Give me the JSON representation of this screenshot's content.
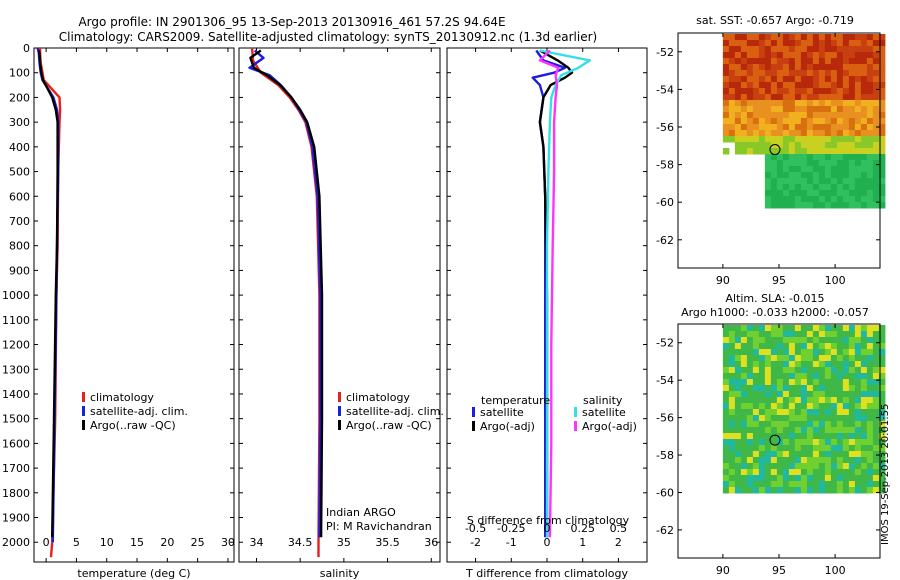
{
  "header": {
    "title_line1": "Argo profile: IN 2901306_95 13-Sep-2013 20130916_461 57.2S 94.64E",
    "title_line2": "Climatology: CARS2009. Satellite-adjusted climatology: synTS_20130912.nc (1.3d earlier)"
  },
  "colors": {
    "climatology": "#e8201c",
    "satellite": "#1a1ee0",
    "argo": "#000000",
    "satellite_salinity": "#33e0e8",
    "argo_salinity_diff": "#ff33ff"
  },
  "chart_data": [
    {
      "id": "temperature",
      "type": "line",
      "xlabel": "temperature (deg C)",
      "ylabel": "",
      "xlim": [
        -2,
        31
      ],
      "ylim": [
        2080,
        0
      ],
      "xticks": [
        0,
        5,
        10,
        15,
        20,
        25,
        30
      ],
      "yticks": [
        0,
        100,
        200,
        300,
        400,
        500,
        600,
        700,
        800,
        900,
        1000,
        1100,
        1200,
        1300,
        1400,
        1500,
        1600,
        1700,
        1800,
        1900,
        2000
      ],
      "legend": {
        "placement": "center",
        "entries": [
          "climatology",
          "satellite-adj. clim.",
          "Argo(..raw -QC)"
        ]
      },
      "series": [
        {
          "name": "climatology",
          "color": "#e8201c",
          "depth": [
            0,
            20,
            60,
            100,
            130,
            200,
            250,
            300,
            500,
            800,
            1000,
            1500,
            2000,
            2060
          ],
          "values": [
            -1.0,
            -1.0,
            -0.9,
            -0.6,
            -0.4,
            2.2,
            2.3,
            2.2,
            2.0,
            1.9,
            1.7,
            1.5,
            1.0,
            0.8
          ]
        },
        {
          "name": "satellite-adj. clim.",
          "color": "#1a1ee0",
          "depth": [
            0,
            20,
            60,
            100,
            130,
            200,
            250,
            300,
            500,
            800,
            1000,
            1500,
            2000
          ],
          "values": [
            -1.4,
            -1.2,
            -1.1,
            -0.9,
            -0.6,
            1.2,
            1.8,
            2.0,
            2.0,
            1.8,
            1.7,
            1.4,
            1.1
          ]
        },
        {
          "name": "Argo(..raw -QC)",
          "color": "#000000",
          "depth": [
            10,
            20,
            60,
            100,
            130,
            200,
            250,
            300,
            500,
            800,
            1000,
            1500,
            1980
          ],
          "values": [
            -1.2,
            -1.1,
            -1.0,
            -0.8,
            -0.5,
            1.0,
            1.6,
            1.9,
            1.9,
            1.8,
            1.6,
            1.3,
            1.0
          ]
        }
      ]
    },
    {
      "id": "salinity",
      "type": "line",
      "xlabel": "salinity",
      "ylabel": "",
      "xlim": [
        33.8,
        36.1
      ],
      "ylim": [
        2080,
        0
      ],
      "xticks": [
        34,
        34.5,
        35,
        35.5,
        36
      ],
      "legend": {
        "placement": "center-right",
        "entries": [
          "climatology",
          "satellite-adj. clim.",
          "Argo(..raw -QC)"
        ]
      },
      "annotation": [
        "Indian ARGO",
        "PI: M Ravichandran"
      ],
      "series": [
        {
          "name": "climatology",
          "color": "#e8201c",
          "depth": [
            0,
            50,
            100,
            150,
            200,
            250,
            300,
            400,
            600,
            1000,
            1500,
            2000,
            2060
          ],
          "values": [
            33.95,
            33.96,
            34.05,
            34.25,
            34.38,
            34.48,
            34.56,
            34.63,
            34.69,
            34.72,
            34.72,
            34.71,
            34.71
          ]
        },
        {
          "name": "satellite-adj. clim.",
          "color": "#1a1ee0",
          "depth": [
            10,
            40,
            80,
            110,
            150,
            200,
            250,
            300,
            400,
            600,
            1000,
            1500,
            1980
          ],
          "values": [
            33.98,
            34.08,
            33.92,
            34.15,
            34.28,
            34.4,
            34.49,
            34.57,
            34.64,
            34.7,
            34.73,
            34.73,
            34.72
          ]
        },
        {
          "name": "Argo(..raw -QC)",
          "color": "#000000",
          "depth": [
            10,
            40,
            80,
            110,
            150,
            200,
            250,
            300,
            400,
            600,
            1000,
            1500,
            1980
          ],
          "values": [
            34.05,
            33.93,
            33.97,
            34.12,
            34.27,
            34.4,
            34.5,
            34.58,
            34.66,
            34.72,
            34.75,
            34.75,
            34.74
          ]
        }
      ]
    },
    {
      "id": "difference",
      "type": "line",
      "xlabel": "T difference from climatology",
      "xlabel_top": "S difference from climatology",
      "xlim": [
        -2.8,
        2.8
      ],
      "ylim": [
        2080,
        0
      ],
      "xticks": [
        -2,
        -1,
        0,
        1,
        2
      ],
      "xticks_salinity": [
        -0.5,
        -0.25,
        0,
        0.25,
        0.5
      ],
      "legend": {
        "placement": "center",
        "temperature_header": "temperature",
        "salinity_header": "salinity",
        "entries": [
          "satellite",
          "Argo(-adj)",
          "satellite",
          "Argo(-adj)"
        ]
      },
      "series": [
        {
          "name": "temperature satellite",
          "color": "#1a1ee0",
          "depth": [
            10,
            50,
            80,
            100,
            120,
            150,
            200,
            300,
            400,
            600,
            1000,
            1500,
            1980
          ],
          "values": [
            -0.3,
            -0.1,
            0.5,
            0.2,
            -0.4,
            -0.2,
            -0.1,
            -0.2,
            -0.1,
            -0.05,
            -0.05,
            -0.05,
            -0.05
          ]
        },
        {
          "name": "temperature Argo(-adj)",
          "color": "#000000",
          "depth": [
            10,
            50,
            80,
            100,
            120,
            150,
            200,
            300,
            400,
            600,
            1000,
            1500,
            1980
          ],
          "values": [
            -0.2,
            0.3,
            0.6,
            0.7,
            0.5,
            0.1,
            -0.1,
            -0.2,
            -0.1,
            -0.05,
            0.0,
            0.0,
            0.0
          ]
        },
        {
          "name": "salinity satellite",
          "color": "#33e0e8",
          "depth": [
            10,
            50,
            80,
            110,
            150,
            200,
            300,
            500,
            800,
            1200,
            1600,
            1980
          ],
          "values": [
            -0.05,
            0.3,
            0.22,
            0.1,
            0.06,
            0.03,
            0.02,
            0.01,
            0.0,
            0.0,
            0.0,
            0.0
          ]
        },
        {
          "name": "salinity Argo(-adj)",
          "color": "#ff33ff",
          "depth": [
            10,
            50,
            80,
            110,
            150,
            200,
            300,
            500,
            800,
            1200,
            1600,
            1980
          ],
          "values": [
            0.02,
            -0.05,
            0.08,
            0.06,
            0.07,
            0.06,
            0.05,
            0.05,
            0.04,
            0.03,
            0.03,
            0.02
          ]
        }
      ]
    },
    {
      "id": "sst_map",
      "type": "heatmap",
      "title": "sat. SST: -0.657 Argo: -0.719",
      "xlim": [
        86,
        104
      ],
      "ylim": [
        -63.5,
        -51
      ],
      "xticks": [
        90,
        95,
        100
      ],
      "yticks": [
        -52,
        -54,
        -56,
        -58,
        -60,
        -62
      ],
      "argo_position": {
        "lon": 94.64,
        "lat": -57.2
      }
    },
    {
      "id": "sla_map",
      "type": "heatmap",
      "title": "Altim. SLA: -0.015",
      "subtitle": "Argo h1000: -0.033 h2000: -0.057",
      "xlim": [
        86,
        104
      ],
      "ylim": [
        -63.5,
        -51
      ],
      "xticks": [
        90,
        95,
        100
      ],
      "yticks": [
        -52,
        -54,
        -56,
        -58,
        -60,
        -62
      ],
      "argo_position": {
        "lon": 94.64,
        "lat": -57.2
      }
    }
  ],
  "footer": {
    "stamp": "IMOS 19-Sep-2013 20:01:55"
  }
}
